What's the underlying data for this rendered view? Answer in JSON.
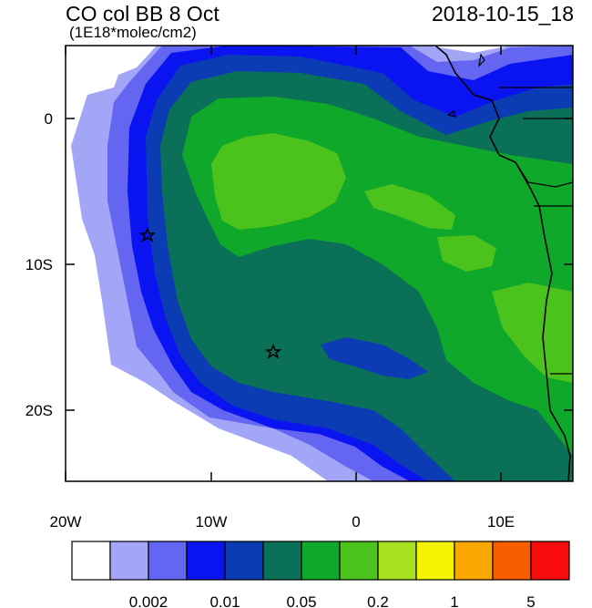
{
  "header": {
    "title": "CO col BB 8 Oct",
    "units": "(1E18*molec/cm2)",
    "timestamp": "2018-10-15_18"
  },
  "map": {
    "lon_range": [
      -20,
      15
    ],
    "lat_range": [
      -25,
      5
    ],
    "x_tick_labels": [
      "20W",
      "10W",
      "0",
      "10E"
    ],
    "y_tick_labels": [
      "0",
      "10S",
      "20S"
    ],
    "markers": [
      {
        "label": "star",
        "lon": -14.3,
        "lat": -8.0
      },
      {
        "label": "star",
        "lon": -5.7,
        "lat": -16.0
      }
    ]
  },
  "colorbar": {
    "colors": [
      "#ffffff",
      "#a3a6f7",
      "#6466f2",
      "#0a14f0",
      "#0c3cb4",
      "#0a7058",
      "#10a82a",
      "#4cc21c",
      "#a8e020",
      "#f4f400",
      "#f8a800",
      "#f85e00",
      "#f80c0c"
    ],
    "labels": [
      "0.002",
      "0.01",
      "0.05",
      "0.2",
      "1",
      "5"
    ]
  }
}
